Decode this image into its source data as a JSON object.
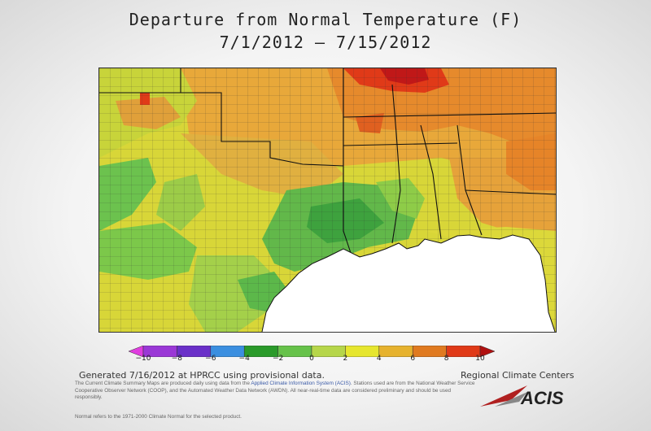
{
  "title_line1": "Departure from Normal Temperature (F)",
  "title_line2": "7/1/2012 – 7/15/2012",
  "legend": {
    "min": -10,
    "max": 10,
    "tick_labels": [
      "−10",
      "−8",
      "−6",
      "−4",
      "−2",
      "0",
      "2",
      "4",
      "6",
      "8",
      "10"
    ],
    "colors": [
      "#e03ce0",
      "#9a38d6",
      "#6a30c8",
      "#3b8fe0",
      "#2a9a2a",
      "#66c24a",
      "#b6d64a",
      "#e6e62e",
      "#e6b22e",
      "#e07a20",
      "#e03a18",
      "#b01010"
    ]
  },
  "footer": {
    "generated": "Generated 7/16/2012 at HPRCC using provisional data.",
    "regional": "Regional Climate Centers",
    "disclaimer_pre": "The Current Climate Summary Maps are produced daily using data from the ",
    "disclaimer_link": "Applied Climate Information System (ACIS)",
    "disclaimer_post": ". Stations used are from the National Weather Service Cooperative Observer Network (COOP), and the Automated Weather Data Network (AWDN). All near-real-time data are considered preliminary and should be used responsibly.",
    "normal_note": "Normal refers to the 1971-2000 Climate Normal for the selected product.",
    "logo_text": "ACIS"
  }
}
